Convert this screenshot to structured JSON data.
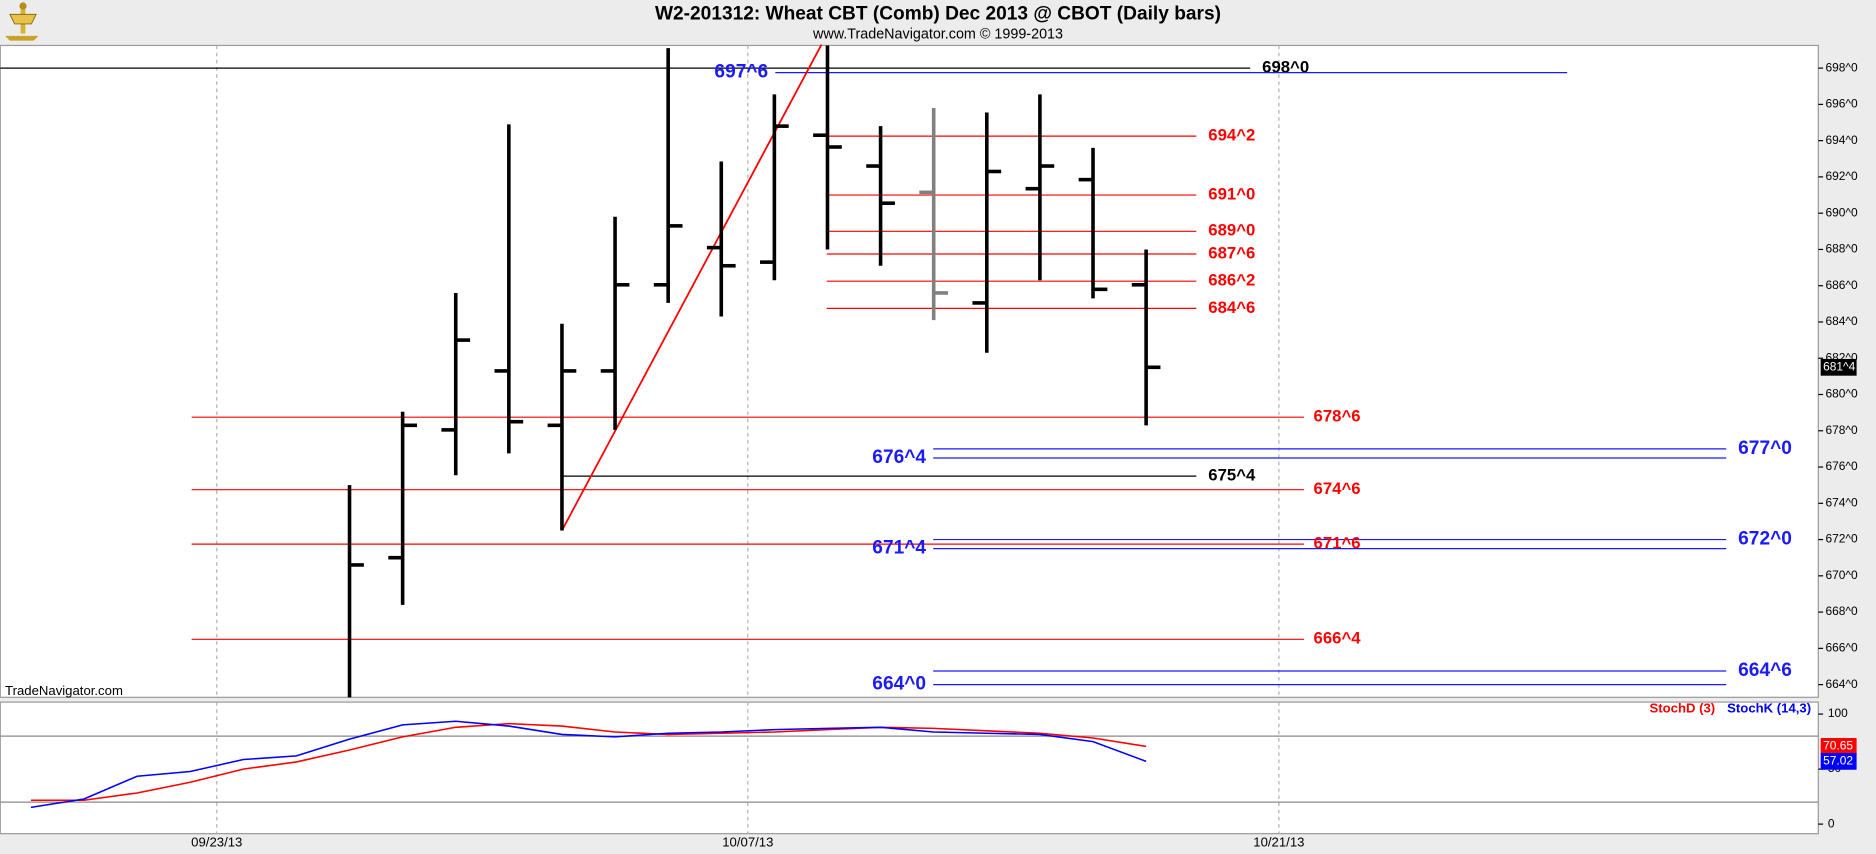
{
  "chart_data": [
    {
      "type": "ohlc",
      "title": "W2-201312:  Wheat CBT (Comb) Dec 2013 @ CBOT  (Daily bars)",
      "subtitle": "www.TradeNavigator.com © 1999-2013",
      "watermark": "TradeNavigator.com",
      "categories": [
        null,
        null,
        null,
        null,
        "09/23/13",
        null,
        null,
        null,
        null,
        null,
        null,
        null,
        null,
        null,
        "10/07/13",
        null,
        null,
        null,
        null,
        null,
        null,
        null,
        null,
        null,
        "10/21/13"
      ],
      "open": [
        null,
        null,
        null,
        null,
        null,
        null,
        null,
        671.0,
        678.05,
        681.3,
        678.3,
        681.3,
        686.05,
        688.1,
        687.3,
        694.3,
        692.6,
        691.15,
        685.05,
        691.35,
        691.85,
        686.05,
        null,
        null,
        null
      ],
      "high": [
        null,
        null,
        null,
        null,
        null,
        null,
        675.0,
        679.05,
        685.6,
        694.9,
        683.9,
        689.8,
        699.1,
        692.85,
        696.55,
        699.3,
        694.8,
        695.8,
        695.55,
        696.55,
        693.6,
        688.0,
        null,
        null,
        null
      ],
      "low": [
        null,
        null,
        null,
        null,
        null,
        null,
        663.3,
        668.4,
        675.55,
        676.75,
        672.5,
        678.05,
        685.05,
        684.3,
        686.3,
        688.0,
        687.1,
        684.1,
        682.3,
        686.3,
        685.3,
        678.3,
        null,
        null,
        null
      ],
      "close": [
        null,
        null,
        null,
        null,
        null,
        null,
        670.6,
        678.3,
        683.0,
        678.5,
        681.3,
        686.05,
        689.3,
        687.1,
        694.8,
        693.65,
        690.55,
        685.6,
        692.3,
        692.6,
        685.8,
        681.5,
        null,
        null,
        null
      ],
      "colors": [
        null,
        null,
        null,
        null,
        null,
        null,
        "#000000",
        "#000000",
        "#000000",
        "#000000",
        "#000000",
        "#000000",
        "#000000",
        "#000000",
        "#000000",
        "#000000",
        "#000000",
        "#808080",
        "#000000",
        "#000000",
        "#000000",
        "#000000",
        null,
        null,
        null
      ],
      "ylim": [
        663.3,
        699.25
      ],
      "yticks": [
        {
          "value": 664,
          "label": "664^0"
        },
        {
          "value": 666,
          "label": "666^0"
        },
        {
          "value": 668,
          "label": "668^0"
        },
        {
          "value": 670,
          "label": "670^0"
        },
        {
          "value": 672,
          "label": "672^0"
        },
        {
          "value": 674,
          "label": "674^0"
        },
        {
          "value": 676,
          "label": "676^0"
        },
        {
          "value": 678,
          "label": "678^0"
        },
        {
          "value": 680,
          "label": "680^0"
        },
        {
          "value": 682,
          "label": "682^0"
        },
        {
          "value": 684,
          "label": "684^0"
        },
        {
          "value": 686,
          "label": "686^0"
        },
        {
          "value": 688,
          "label": "688^0"
        },
        {
          "value": 690,
          "label": "690^0"
        },
        {
          "value": 692,
          "label": "692^0"
        },
        {
          "value": 694,
          "label": "694^0"
        },
        {
          "value": 696,
          "label": "696^0"
        },
        {
          "value": 698,
          "label": "698^0"
        }
      ],
      "xgrid": true,
      "last_price": {
        "value": 681.5,
        "label": "681^4"
      },
      "lines": [
        {
          "value": 698.0,
          "label": "698^0",
          "color": "#000000"
        },
        {
          "value": 697.75,
          "label": "697^6",
          "color": "#1a1aff"
        },
        {
          "value": 694.25,
          "label": "694^2",
          "color": "#ff0000"
        },
        {
          "value": 691.0,
          "label": "691^0",
          "color": "#ff0000"
        },
        {
          "value": 689.0,
          "label": "689^0",
          "color": "#ff0000"
        },
        {
          "value": 687.75,
          "label": "687^6",
          "color": "#ff0000"
        },
        {
          "value": 686.25,
          "label": "686^2",
          "color": "#ff0000"
        },
        {
          "value": 684.75,
          "label": "684^6",
          "color": "#ff0000"
        },
        {
          "value": 678.75,
          "label": "678^6",
          "color": "#ff0000"
        },
        {
          "value": 677.0,
          "label": "677^0",
          "color": "#1a1aff"
        },
        {
          "value": 676.5,
          "label": "676^4",
          "color": "#1a1aff"
        },
        {
          "value": 675.5,
          "label": "675^4",
          "color": "#000000"
        },
        {
          "value": 674.75,
          "label": "674^6",
          "color": "#ff0000"
        },
        {
          "value": 672.0,
          "label": "672^0",
          "color": "#1a1aff"
        },
        {
          "value": 671.75,
          "label": "671^6",
          "color": "#ff0000"
        },
        {
          "value": 671.5,
          "label": "671^4",
          "color": "#1a1aff"
        },
        {
          "value": 666.5,
          "label": "666^4",
          "color": "#ff0000"
        },
        {
          "value": 664.75,
          "label": "664^6",
          "color": "#1a1aff"
        },
        {
          "value": 664.0,
          "label": "664^0",
          "color": "#1a1aff"
        }
      ],
      "trendline": {
        "color": "#ff0000",
        "points": [
          {
            "x": 10,
            "value": 672.5
          },
          {
            "x": 15,
            "value": 699.3
          }
        ]
      }
    },
    {
      "type": "line",
      "series": [
        {
          "name": "StochD (3)",
          "color": "#ff0000",
          "values": [
            21.7,
            21.7,
            28.3,
            38.0,
            50.0,
            56.5,
            67.4,
            79.3,
            88.0,
            91.3,
            89.1,
            83.7,
            81.5,
            82.6,
            83.7,
            85.9,
            88.0,
            87.0,
            84.8,
            82.6,
            78.3,
            70.65,
            null,
            null,
            null
          ]
        },
        {
          "name": "StochK (14,3)",
          "color": "#0000ff",
          "values": [
            15.2,
            22.8,
            43.5,
            47.8,
            58.7,
            62.0,
            77.2,
            90.2,
            93.5,
            89.1,
            81.5,
            79.3,
            82.6,
            83.7,
            85.9,
            87.0,
            88.0,
            83.7,
            82.6,
            81.5,
            75.0,
            57.02,
            null,
            null,
            null
          ]
        }
      ],
      "ylim": [
        -8.7,
        110.9
      ],
      "yticks": [
        0,
        50,
        100
      ],
      "levels": [
        20,
        80
      ]
    }
  ]
}
